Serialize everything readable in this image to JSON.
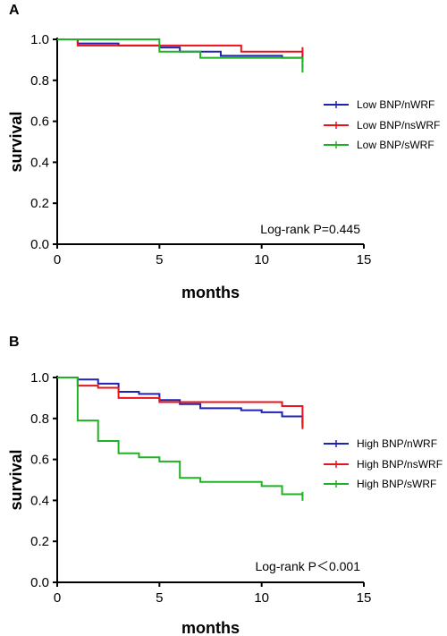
{
  "colors": {
    "blue": "#1f23b4",
    "red": "#e8141c",
    "green": "#21b124",
    "axis": "#000000"
  },
  "chart_data": [
    {
      "type": "line",
      "panel_label": "A",
      "xlabel": "months",
      "ylabel": "survival",
      "xlim": [
        0,
        15
      ],
      "ylim": [
        0,
        1.0
      ],
      "xticks": [
        "0",
        "5",
        "10",
        "15"
      ],
      "yticks": [
        "0.0",
        "0.2",
        "0.4",
        "0.6",
        "0.8",
        "1.0"
      ],
      "annotation": "Log-rank P=0.445",
      "legend_position": "right",
      "series": [
        {
          "name": "Low BNP/nWRF",
          "color": "blue",
          "step_x": [
            0,
            1,
            3,
            5,
            6,
            8,
            11,
            12
          ],
          "step_y": [
            1.0,
            0.98,
            0.97,
            0.96,
            0.94,
            0.92,
            0.91,
            0.91
          ]
        },
        {
          "name": "Low BNP/nsWRF",
          "color": "red",
          "step_x": [
            0,
            1,
            9,
            12
          ],
          "step_y": [
            1.0,
            0.97,
            0.94,
            0.94
          ]
        },
        {
          "name": "Low BNP/sWRF",
          "color": "green",
          "step_x": [
            0,
            5,
            7,
            12
          ],
          "step_y": [
            1.0,
            0.94,
            0.91,
            0.86
          ]
        }
      ]
    },
    {
      "type": "line",
      "panel_label": "B",
      "xlabel": "months",
      "ylabel": "survival",
      "xlim": [
        0,
        15
      ],
      "ylim": [
        0,
        1.0
      ],
      "xticks": [
        "0",
        "5",
        "10",
        "15"
      ],
      "yticks": [
        "0.0",
        "0.2",
        "0.4",
        "0.6",
        "0.8",
        "1.0"
      ],
      "annotation": "Log-rank P＜0.001",
      "legend_position": "right",
      "series": [
        {
          "name": "High BNP/nWRF",
          "color": "blue",
          "step_x": [
            0,
            1,
            2,
            3,
            4,
            5,
            6,
            7,
            9,
            10,
            11,
            12
          ],
          "step_y": [
            1.0,
            0.99,
            0.97,
            0.93,
            0.92,
            0.89,
            0.87,
            0.85,
            0.84,
            0.83,
            0.81,
            0.78
          ]
        },
        {
          "name": "High BNP/nsWRF",
          "color": "red",
          "step_x": [
            0,
            1,
            2,
            3,
            5,
            6,
            11,
            12
          ],
          "step_y": [
            1.0,
            0.96,
            0.95,
            0.9,
            0.88,
            0.88,
            0.86,
            0.77
          ]
        },
        {
          "name": "High BNP/sWRF",
          "color": "green",
          "step_x": [
            0,
            1,
            2,
            3,
            4,
            5,
            6,
            7,
            10,
            11,
            12
          ],
          "step_y": [
            1.0,
            0.79,
            0.69,
            0.63,
            0.61,
            0.59,
            0.51,
            0.49,
            0.47,
            0.43,
            0.42
          ]
        }
      ]
    }
  ]
}
